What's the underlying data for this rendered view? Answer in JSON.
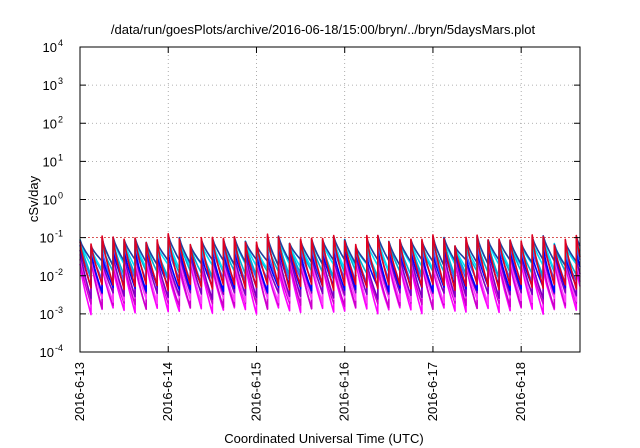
{
  "chart_data": {
    "type": "line",
    "title": "/data/run/goesPlots/archive/2016-06-18/15:00/bryn/../bryn/5daysMars.plot",
    "xlabel": "Coordinated Universal Time (UTC)",
    "ylabel": "cSv/day",
    "yscale": "log",
    "ylim": [
      0.0001,
      10000
    ],
    "xlim": [
      "2016-06-13",
      "2016-06-18 16:00"
    ],
    "grid": true,
    "x_ticks": [
      "2016-6-13",
      "2016-6-14",
      "2016-6-15",
      "2016-6-16",
      "2016-6-17",
      "2016-6-18"
    ],
    "y_ticks": [
      {
        "base": "10",
        "exp": "-4",
        "value": 0.0001
      },
      {
        "base": "10",
        "exp": "-3",
        "value": 0.001
      },
      {
        "base": "10",
        "exp": "-2",
        "value": 0.01
      },
      {
        "base": "10",
        "exp": "-1",
        "value": 0.1
      },
      {
        "base": "10",
        "exp": "0",
        "value": 1
      },
      {
        "base": "10",
        "exp": "1",
        "value": 10
      },
      {
        "base": "10",
        "exp": "2",
        "value": 100
      },
      {
        "base": "10",
        "exp": "3",
        "value": 1000
      },
      {
        "base": "10",
        "exp": "4",
        "value": 10000
      }
    ],
    "reference_line": {
      "value": 0.1,
      "color": "#d62728"
    },
    "cycle_hours": 3,
    "series": [
      {
        "color": "#ff00ff",
        "peak": 0.024,
        "trough": 0.0012
      },
      {
        "color": "#cc00cc",
        "peak": 0.028,
        "trough": 0.0016
      },
      {
        "color": "#ff40ff",
        "peak": 0.034,
        "trough": 0.0022
      },
      {
        "color": "#8000c0",
        "peak": 0.042,
        "trough": 0.003
      },
      {
        "color": "#0000ff",
        "peak": 0.055,
        "trough": 0.0045
      },
      {
        "color": "#4060ff",
        "peak": 0.07,
        "trough": 0.007
      },
      {
        "color": "#00b0d0",
        "peak": 0.085,
        "trough": 0.011
      },
      {
        "color": "#00e0ff",
        "peak": 0.095,
        "trough": 0.017
      },
      {
        "color": "#2040a0",
        "peak": 0.105,
        "trough": 0.022
      },
      {
        "color": "#e00020",
        "peak": 0.11,
        "trough": 0.005
      }
    ]
  }
}
